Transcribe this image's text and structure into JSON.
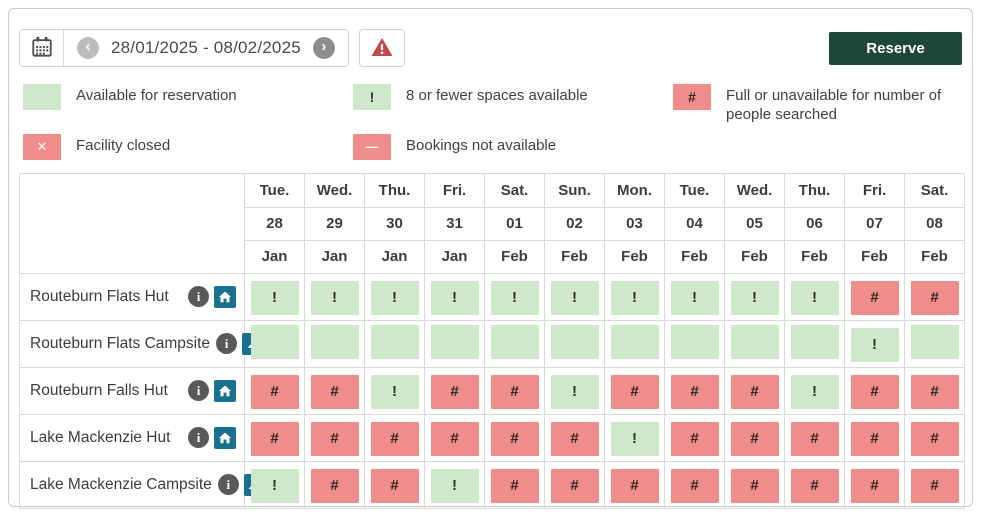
{
  "toolbar": {
    "date_range": "28/01/2025 - 08/02/2025",
    "reserve_label": "Reserve",
    "prev_glyph": "‹",
    "next_glyph": "›"
  },
  "legend": {
    "items": [
      {
        "type": "available",
        "glyph": "",
        "label": "Available for reservation"
      },
      {
        "type": "closed",
        "glyph": "✕",
        "label": "Facility closed"
      },
      {
        "type": "limited",
        "glyph": "!",
        "label": "8 or fewer spaces available"
      },
      {
        "type": "unavailable",
        "glyph": "—",
        "label": "Bookings not available"
      },
      {
        "type": "full",
        "glyph": "#",
        "label": "Full or unavailable for number of people searched"
      }
    ]
  },
  "cell_glyphs": {
    "available": "",
    "limited": "!",
    "full": "#"
  },
  "calendar": {
    "columns": [
      {
        "day": "Tue.",
        "date": "28",
        "month": "Jan"
      },
      {
        "day": "Wed.",
        "date": "29",
        "month": "Jan"
      },
      {
        "day": "Thu.",
        "date": "30",
        "month": "Jan"
      },
      {
        "day": "Fri.",
        "date": "31",
        "month": "Jan"
      },
      {
        "day": "Sat.",
        "date": "01",
        "month": "Feb"
      },
      {
        "day": "Sun.",
        "date": "02",
        "month": "Feb"
      },
      {
        "day": "Mon.",
        "date": "03",
        "month": "Feb"
      },
      {
        "day": "Tue.",
        "date": "04",
        "month": "Feb"
      },
      {
        "day": "Wed.",
        "date": "05",
        "month": "Feb"
      },
      {
        "day": "Thu.",
        "date": "06",
        "month": "Feb"
      },
      {
        "day": "Fri.",
        "date": "07",
        "month": "Feb"
      },
      {
        "day": "Sat.",
        "date": "08",
        "month": "Feb"
      }
    ],
    "rows": [
      {
        "name": "Routeburn Flats Hut",
        "facility_type": "hut",
        "cells": [
          "limited",
          "limited",
          "limited",
          "limited",
          "limited",
          "limited",
          "limited",
          "limited",
          "limited",
          "limited",
          "full",
          "full"
        ]
      },
      {
        "name": "Routeburn Flats Campsite",
        "facility_type": "campsite",
        "cells": [
          "available",
          "available",
          "available",
          "available",
          "available",
          "available",
          "available",
          "available",
          "available",
          "available",
          "limited",
          "available"
        ]
      },
      {
        "name": "Routeburn Falls Hut",
        "facility_type": "hut",
        "cells": [
          "full",
          "full",
          "limited",
          "full",
          "full",
          "limited",
          "full",
          "full",
          "full",
          "limited",
          "full",
          "full"
        ]
      },
      {
        "name": "Lake Mackenzie Hut",
        "facility_type": "hut",
        "cells": [
          "full",
          "full",
          "full",
          "full",
          "full",
          "full",
          "limited",
          "full",
          "full",
          "full",
          "full",
          "full"
        ]
      },
      {
        "name": "Lake Mackenzie Campsite",
        "facility_type": "campsite",
        "cells": [
          "limited",
          "full",
          "full",
          "limited",
          "full",
          "full",
          "full",
          "full",
          "full",
          "full",
          "full",
          "full"
        ]
      }
    ]
  },
  "colors": {
    "available_bg": "#cfe8cb",
    "full_bg": "#ee8d89",
    "reserve_bg": "#1e463b",
    "facility_icon_bg": "#19708f",
    "warning": "#bf4a47",
    "info_icon_bg": "#58595b"
  }
}
